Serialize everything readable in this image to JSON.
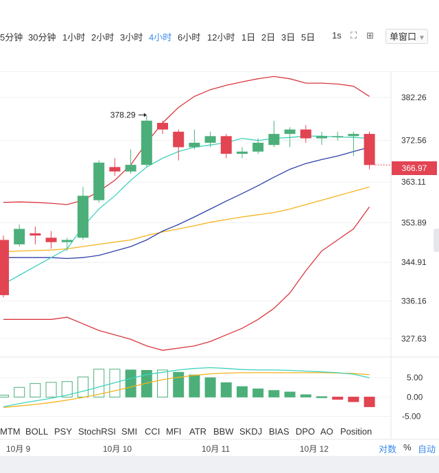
{
  "toolbar": {
    "timeframes": [
      "5分钟",
      "30分钟",
      "1小时",
      "2小时",
      "3小时",
      "4小时",
      "6小时",
      "12小时",
      "1日",
      "2日",
      "3日",
      "5日"
    ],
    "active_timeframe": "4小时",
    "right_interval": "1s",
    "window_button": "单窗口"
  },
  "price_tag": "366.97",
  "peak_label": "378.29",
  "indicator_tabs": [
    "MTM",
    "BOLL",
    "PSY",
    "StochRSI",
    "SMI",
    "CCI",
    "MFI",
    "ATR",
    "BBW",
    "SKDJ",
    "BIAS",
    "DPO",
    "AO",
    "Position"
  ],
  "x_axis": [
    "10月 9",
    "10月 10",
    "10月 11",
    "10月 12"
  ],
  "axis_buttons": [
    "对数",
    "%",
    "自动"
  ],
  "colors": {
    "up": "#4caf7a",
    "down": "#e24452",
    "boll_upper": "#d9363e",
    "ma_dark": "#2f3fa8",
    "ma_cyan": "#3fd1bc",
    "ma_orange": "#f5b21a",
    "active_tab": "#3b8beb"
  },
  "chart_data": [
    {
      "type": "candlestick",
      "y_ticks": [
        382.26,
        372.56,
        363.11,
        353.89,
        344.91,
        336.16,
        327.63
      ],
      "ylim": [
        323.5,
        388
      ],
      "candles": [
        {
          "o": 350,
          "h": 351,
          "l": 337,
          "c": 337.5
        },
        {
          "o": 349,
          "h": 353.5,
          "l": 348.5,
          "c": 352.5
        },
        {
          "o": 351.5,
          "h": 353,
          "l": 349,
          "c": 351
        },
        {
          "o": 350.5,
          "h": 352,
          "l": 348,
          "c": 349.5
        },
        {
          "o": 349.5,
          "h": 350.5,
          "l": 347.5,
          "c": 350
        },
        {
          "o": 350.5,
          "h": 362,
          "l": 350,
          "c": 360
        },
        {
          "o": 359,
          "h": 368,
          "l": 358.5,
          "c": 367.5
        },
        {
          "o": 366.5,
          "h": 368.5,
          "l": 364.5,
          "c": 365.5
        },
        {
          "o": 365.5,
          "h": 370.5,
          "l": 365,
          "c": 367
        },
        {
          "o": 367,
          "h": 378.29,
          "l": 366.5,
          "c": 377
        },
        {
          "o": 376.5,
          "h": 377,
          "l": 374,
          "c": 375
        },
        {
          "o": 374.5,
          "h": 375,
          "l": 368,
          "c": 371
        },
        {
          "o": 371,
          "h": 375,
          "l": 370.5,
          "c": 372
        },
        {
          "o": 372,
          "h": 374.5,
          "l": 371,
          "c": 373.5
        },
        {
          "o": 373.5,
          "h": 374,
          "l": 368.5,
          "c": 369.5
        },
        {
          "o": 369.5,
          "h": 371,
          "l": 368.5,
          "c": 370
        },
        {
          "o": 370,
          "h": 373,
          "l": 369.5,
          "c": 372
        },
        {
          "o": 371.5,
          "h": 377,
          "l": 371,
          "c": 374
        },
        {
          "o": 374,
          "h": 375.5,
          "l": 371,
          "c": 375
        },
        {
          "o": 375,
          "h": 376,
          "l": 372,
          "c": 373
        },
        {
          "o": 373,
          "h": 374.5,
          "l": 371.5,
          "c": 373.5
        },
        {
          "o": 373.5,
          "h": 374.5,
          "l": 372.5,
          "c": 373.5
        },
        {
          "o": 373.5,
          "h": 374.5,
          "l": 369,
          "c": 374
        },
        {
          "o": 374,
          "h": 374.5,
          "l": 366,
          "c": 366.97
        }
      ],
      "boll_upper": [
        358.5,
        358.6,
        358.5,
        358.3,
        358,
        359,
        361,
        363.5,
        367,
        372,
        376.5,
        380,
        382.5,
        384,
        385,
        385.8,
        386.5,
        387,
        386.5,
        385.5,
        385.5,
        385.3,
        384.8,
        382.5
      ],
      "boll_lower": [
        332,
        332,
        332,
        332,
        332.5,
        331,
        329.5,
        328.5,
        327.5,
        326,
        325,
        325.5,
        326,
        327,
        328.5,
        330,
        332,
        334.5,
        338,
        343,
        347.5,
        350,
        352.5,
        357.5
      ],
      "ma_dark": [
        346,
        346,
        346,
        346,
        345.8,
        346,
        346.5,
        347.5,
        348.5,
        350,
        352,
        353.5,
        355.2,
        357,
        358.8,
        360.5,
        362.3,
        364.2,
        366,
        367.3,
        368.2,
        369,
        370,
        371
      ],
      "ma_cyan": [
        340,
        342,
        344,
        346,
        348,
        353,
        357,
        360,
        363.5,
        366.5,
        368.5,
        370,
        371,
        371.5,
        372,
        373,
        372.5,
        373,
        373.2,
        373.5,
        373.5,
        373.3,
        373.2,
        373
      ],
      "ma_orange": [
        347.3,
        347.5,
        347.6,
        347.7,
        348,
        348.5,
        349,
        349.5,
        350,
        351,
        351.8,
        352.5,
        353.2,
        354,
        354.6,
        355.2,
        355.7,
        356.2,
        357,
        358,
        359,
        360,
        361,
        362
      ]
    },
    {
      "type": "bar",
      "y_ticks": [
        5.0,
        0.0,
        -5.0
      ],
      "ylim": [
        -6.5,
        10
      ],
      "values": [
        0.5,
        2.5,
        3.5,
        3.8,
        4.0,
        5.2,
        7.2,
        7.2,
        7.0,
        6.9,
        7.0,
        6.4,
        5.7,
        5.0,
        3.7,
        2.7,
        2.1,
        1.7,
        1.3,
        0.6,
        0.1,
        -0.6,
        -1.2,
        -2.5
      ],
      "line_cyan": [
        -2.5,
        -1.7,
        -1.0,
        -0.3,
        0.5,
        1.5,
        2.6,
        3.7,
        4.8,
        5.8,
        6.4,
        7.0,
        7.4,
        7.6,
        7.4,
        7.1,
        7.0,
        7.0,
        6.9,
        6.7,
        6.5,
        6.3,
        5.9,
        5.0
      ],
      "line_orange": [
        -2.7,
        -2.3,
        -1.9,
        -1.4,
        -0.8,
        -0.1,
        0.7,
        1.6,
        2.6,
        3.6,
        4.5,
        5.1,
        5.6,
        6.0,
        6.2,
        6.3,
        6.3,
        6.3,
        6.3,
        6.3,
        6.3,
        6.2,
        6.1,
        5.8
      ]
    }
  ]
}
